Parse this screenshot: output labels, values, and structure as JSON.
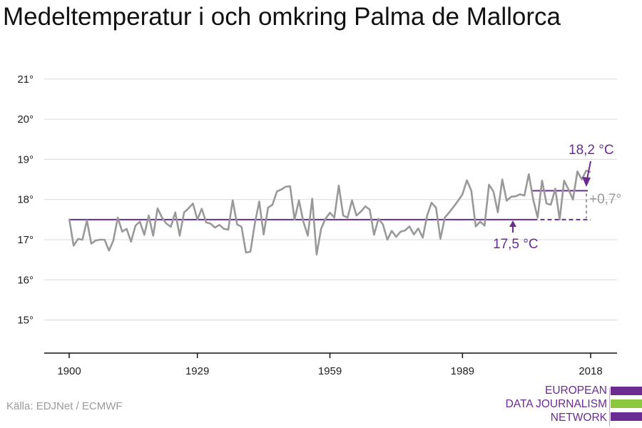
{
  "title": "Medeltemperatur i och omkring Palma de Mallorca",
  "source": "Källa: EDJNet / ECMWF",
  "logo": {
    "lines": [
      "EUROPEAN",
      "DATA JOURNALISM",
      "NETWORK"
    ],
    "colors": {
      "purple": "#6a2c91",
      "green": "#8dc63f"
    }
  },
  "colors": {
    "series": "#999999",
    "baseline": "#6a2c91",
    "grid": "#d9d9d9",
    "axis": "#111111",
    "delta": "#999999"
  },
  "chart_data": {
    "type": "line",
    "title": "Medeltemperatur i och omkring Palma de Mallorca",
    "xlabel": "",
    "ylabel": "",
    "xlim": [
      1900,
      2018
    ],
    "ylim": [
      14.2,
      21.5
    ],
    "x_ticks": [
      {
        "value": 1900,
        "label": "1900"
      },
      {
        "value": 1929,
        "label": "1929"
      },
      {
        "value": 1959,
        "label": "1959"
      },
      {
        "value": 1989,
        "label": "1989"
      },
      {
        "value": 2018,
        "label": "2018"
      }
    ],
    "y_ticks": [
      {
        "value": 15,
        "label": "15°"
      },
      {
        "value": 16,
        "label": "16°"
      },
      {
        "value": 17,
        "label": "17°"
      },
      {
        "value": 18,
        "label": "18°"
      },
      {
        "value": 19,
        "label": "19°"
      },
      {
        "value": 20,
        "label": "20°"
      },
      {
        "value": 21,
        "label": "21°"
      }
    ],
    "grid": true,
    "series": [
      {
        "x": [
          1900,
          1901,
          1902,
          1903,
          1904,
          1905,
          1906,
          1907,
          1908,
          1909,
          1910,
          1911,
          1912,
          1913,
          1914,
          1915,
          1916,
          1917,
          1918,
          1919,
          1920,
          1921,
          1922,
          1923,
          1924,
          1925,
          1926,
          1927,
          1928,
          1929,
          1930,
          1931,
          1932,
          1933,
          1934,
          1935,
          1936,
          1937,
          1938,
          1939,
          1940,
          1941,
          1942,
          1943,
          1944,
          1945,
          1946,
          1947,
          1948,
          1949,
          1950,
          1951,
          1952,
          1953,
          1954,
          1955,
          1956,
          1957,
          1958,
          1959,
          1960,
          1961,
          1962,
          1963,
          1964,
          1965,
          1966,
          1967,
          1968,
          1969,
          1970,
          1971,
          1972,
          1973,
          1974,
          1975,
          1976,
          1977,
          1978,
          1979,
          1980,
          1981,
          1982,
          1983,
          1984,
          1985,
          1986,
          1987,
          1988,
          1989,
          1990,
          1991,
          1992,
          1993,
          1994,
          1995,
          1996,
          1997,
          1998,
          1999,
          2000,
          2001,
          2002,
          2003,
          2004,
          2005,
          2006,
          2007,
          2008,
          2009,
          2010,
          2011,
          2012,
          2013,
          2014,
          2015,
          2016,
          2017,
          2018
        ],
        "values": [
          17.52,
          16.85,
          17.02,
          17.0,
          17.48,
          16.9,
          16.98,
          17.0,
          17.0,
          16.73,
          16.98,
          17.55,
          17.2,
          17.27,
          16.95,
          17.35,
          17.45,
          17.12,
          17.6,
          17.1,
          17.78,
          17.55,
          17.4,
          17.32,
          17.68,
          17.1,
          17.68,
          17.78,
          17.9,
          17.5,
          17.77,
          17.43,
          17.4,
          17.3,
          17.37,
          17.27,
          17.25,
          17.98,
          17.38,
          17.32,
          16.68,
          16.7,
          17.4,
          17.95,
          17.13,
          17.8,
          17.87,
          18.2,
          18.25,
          18.32,
          18.33,
          17.5,
          17.98,
          17.45,
          17.1,
          18.02,
          16.63,
          17.27,
          17.52,
          17.67,
          17.55,
          18.35,
          17.6,
          17.55,
          17.98,
          17.6,
          17.7,
          17.83,
          17.75,
          17.12,
          17.52,
          17.38,
          17.0,
          17.22,
          17.07,
          17.2,
          17.23,
          17.33,
          17.13,
          17.28,
          17.05,
          17.6,
          17.92,
          17.8,
          17.02,
          17.55,
          17.68,
          17.82,
          17.97,
          18.13,
          18.48,
          18.22,
          17.33,
          17.45,
          17.35,
          18.37,
          18.2,
          17.68,
          18.5,
          17.97,
          18.07,
          18.08,
          18.13,
          18.1,
          18.63,
          18.0,
          17.55,
          18.47,
          17.9,
          17.87,
          18.27,
          17.5,
          18.47,
          18.25,
          18.0,
          18.7,
          18.5,
          18.72,
          18.68
        ]
      }
    ],
    "annotations": {
      "baseline": {
        "label": "17,5 °C",
        "value": 17.5,
        "x_from": 1900,
        "x_to": 2018,
        "solid_until": 2005
      },
      "recent": {
        "label": "18,2 °C",
        "value": 18.22,
        "x_from": 2005,
        "x_to": 2018
      },
      "difference": {
        "label": "+0,7°"
      }
    }
  }
}
